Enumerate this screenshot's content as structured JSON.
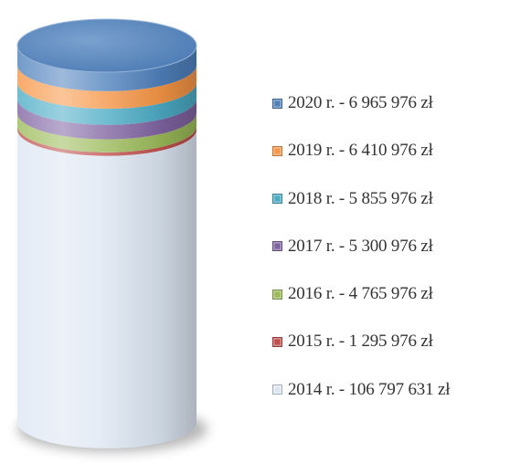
{
  "chart_data": {
    "type": "stacked-cylinder",
    "unit": "zł",
    "series": [
      {
        "name": "2014",
        "value": 106797631,
        "label": "2014 r. - 106 797 631 zł",
        "color": "#dce6f2"
      },
      {
        "name": "2015",
        "value": 1295976,
        "label": "2015 r. - 1 295 976 zł",
        "color": "#c0504d"
      },
      {
        "name": "2016",
        "value": 4765976,
        "label": "2016 r. - 4 765 976 zł",
        "color": "#9bbb59"
      },
      {
        "name": "2017",
        "value": 5300976,
        "label": "2017 r. - 5 300 976 zł",
        "color": "#8064a2"
      },
      {
        "name": "2018",
        "value": 5855976,
        "label": "2018 r. - 5 855 976 zł",
        "color": "#4bacc6"
      },
      {
        "name": "2019",
        "value": 6410976,
        "label": "2019 r. - 6 410 976 zł",
        "color": "#f79646"
      },
      {
        "name": "2020",
        "value": 6965976,
        "label": "2020 r. - 6 965 976 zł",
        "color": "#4f81bd"
      }
    ],
    "legend_order": [
      "2020",
      "2019",
      "2018",
      "2017",
      "2016",
      "2015",
      "2014"
    ],
    "legend_position": "right",
    "grid": false,
    "title": "",
    "xlabel": "",
    "ylabel": ""
  }
}
